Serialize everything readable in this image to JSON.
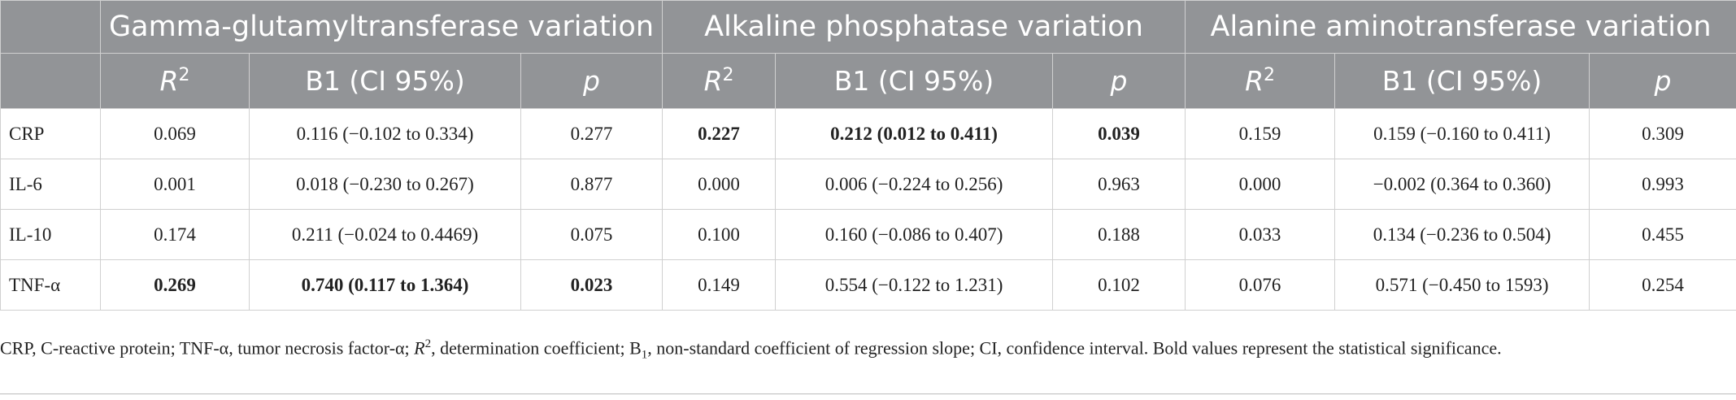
{
  "table": {
    "groups": [
      "Gamma-glutamyltransferase variation",
      "Alkaline phosphatase variation",
      "Alanine aminotransferase variation"
    ],
    "subheaders": [
      {
        "text": "R",
        "sup": "2",
        "italic": true
      },
      {
        "text": "B1 (CI 95%)"
      },
      {
        "text": "p",
        "italic": true
      },
      {
        "text": "R",
        "sup": "2",
        "italic": true
      },
      {
        "text": "B1 (CI 95%)"
      },
      {
        "text": "p",
        "italic": true
      },
      {
        "text": "R",
        "sup": "2",
        "italic": true
      },
      {
        "text": "B1 (CI 95%)"
      },
      {
        "text": "p",
        "italic": true
      }
    ],
    "rows": [
      {
        "label": "CRP",
        "cells": [
          {
            "text": "0.069"
          },
          {
            "text": "0.116 (−0.102 to 0.334)"
          },
          {
            "text": "0.277"
          },
          {
            "text": "0.227",
            "bold": true
          },
          {
            "text": "0.212 (0.012 to 0.411)",
            "bold": true
          },
          {
            "text": "0.039",
            "bold": true
          },
          {
            "text": "0.159"
          },
          {
            "text": "0.159 (−0.160 to 0.411)"
          },
          {
            "text": "0.309"
          }
        ]
      },
      {
        "label": "IL-6",
        "cells": [
          {
            "text": "0.001"
          },
          {
            "text": "0.018 (−0.230 to 0.267)"
          },
          {
            "text": "0.877"
          },
          {
            "text": "0.000"
          },
          {
            "text": "0.006 (−0.224 to 0.256)"
          },
          {
            "text": "0.963"
          },
          {
            "text": "0.000"
          },
          {
            "text": "−0.002 (0.364 to 0.360)"
          },
          {
            "text": "0.993"
          }
        ]
      },
      {
        "label": "IL-10",
        "cells": [
          {
            "text": "0.174"
          },
          {
            "text": "0.211 (−0.024 to 0.4469)"
          },
          {
            "text": "0.075"
          },
          {
            "text": "0.100"
          },
          {
            "text": "0.160 (−0.086 to 0.407)"
          },
          {
            "text": "0.188"
          },
          {
            "text": "0.033"
          },
          {
            "text": "0.134 (−0.236 to 0.504)"
          },
          {
            "text": "0.455"
          }
        ]
      },
      {
        "label": "TNF-α",
        "cells": [
          {
            "text": "0.269",
            "bold": true
          },
          {
            "text": "0.740 (0.117 to 1.364)",
            "bold": true
          },
          {
            "text": "0.023",
            "bold": true
          },
          {
            "text": "0.149"
          },
          {
            "text": "0.554 (−0.122 to 1.231)"
          },
          {
            "text": "0.102"
          },
          {
            "text": "0.076"
          },
          {
            "text": "0.571 (−0.450 to 1593)"
          },
          {
            "text": "0.254"
          }
        ]
      }
    ]
  },
  "footnote": [
    {
      "text": "CRP, C-reactive protein; TNF-α, tumor necrosis factor-α; "
    },
    {
      "text": "R",
      "style": "italic"
    },
    {
      "text": "2",
      "style": "sup"
    },
    {
      "text": ", determination coefficient; B"
    },
    {
      "text": "1",
      "style": "sub"
    },
    {
      "text": ", non-standard coefficient of regression slope; CI, confidence interval. Bold values represent the statistical significance."
    }
  ]
}
